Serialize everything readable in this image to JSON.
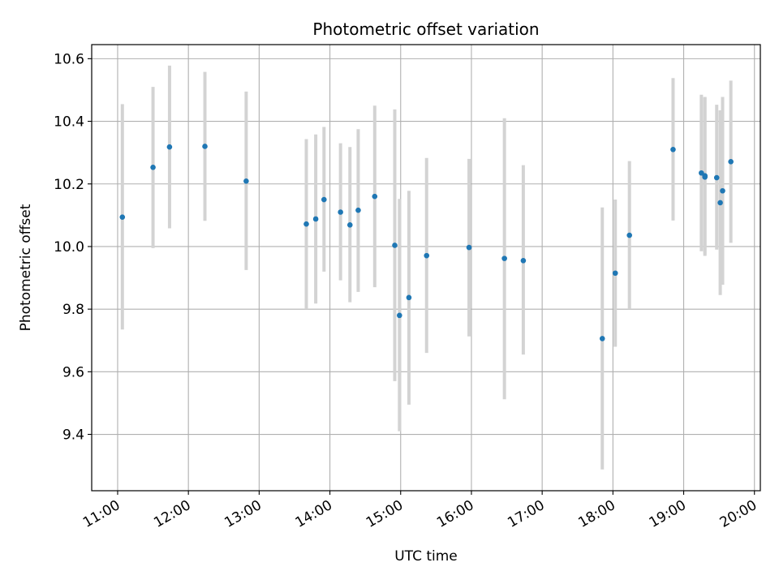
{
  "chart_data": {
    "type": "scatter",
    "title": "Photometric offset variation",
    "xlabel": "UTC time",
    "ylabel": "Photometric offset",
    "grid": true,
    "xlim": [
      "10:38",
      "20:05"
    ],
    "ylim": [
      9.22,
      10.645
    ],
    "x_ticks": [
      "11:00",
      "12:00",
      "13:00",
      "14:00",
      "15:00",
      "16:00",
      "17:00",
      "18:00",
      "19:00",
      "20:00"
    ],
    "y_ticks": [
      9.4,
      9.6,
      9.8,
      10.0,
      10.2,
      10.4,
      10.6
    ],
    "y_tick_labels": [
      "9.4",
      "9.6",
      "9.8",
      "10.0",
      "10.2",
      "10.4",
      "10.6"
    ],
    "series": [
      {
        "marker_color": "#1f77b4",
        "errorbar_color": "#d3d3d3",
        "points": [
          {
            "x": "11:04",
            "y": 10.094,
            "low": 9.735,
            "high": 10.455
          },
          {
            "x": "11:30",
            "y": 10.253,
            "low": 9.995,
            "high": 10.51
          },
          {
            "x": "11:44",
            "y": 10.318,
            "low": 10.058,
            "high": 10.578
          },
          {
            "x": "12:14",
            "y": 10.32,
            "low": 10.082,
            "high": 10.558
          },
          {
            "x": "12:49",
            "y": 10.209,
            "low": 9.925,
            "high": 10.495
          },
          {
            "x": "13:40",
            "y": 10.072,
            "low": 9.8,
            "high": 10.343
          },
          {
            "x": "13:48",
            "y": 10.088,
            "low": 9.818,
            "high": 10.358
          },
          {
            "x": "13:55",
            "y": 10.15,
            "low": 9.92,
            "high": 10.382
          },
          {
            "x": "14:09",
            "y": 10.11,
            "low": 9.892,
            "high": 10.33
          },
          {
            "x": "14:17",
            "y": 10.069,
            "low": 9.822,
            "high": 10.318
          },
          {
            "x": "14:24",
            "y": 10.116,
            "low": 9.855,
            "high": 10.375
          },
          {
            "x": "14:38",
            "y": 10.16,
            "low": 9.87,
            "high": 10.45
          },
          {
            "x": "14:55",
            "y": 10.004,
            "low": 9.57,
            "high": 10.438
          },
          {
            "x": "14:59",
            "y": 9.78,
            "low": 9.41,
            "high": 10.152
          },
          {
            "x": "15:07",
            "y": 9.837,
            "low": 9.495,
            "high": 10.178
          },
          {
            "x": "15:22",
            "y": 9.971,
            "low": 9.66,
            "high": 10.283
          },
          {
            "x": "15:58",
            "y": 9.997,
            "low": 9.713,
            "high": 10.28
          },
          {
            "x": "16:28",
            "y": 9.962,
            "low": 9.512,
            "high": 10.41
          },
          {
            "x": "16:44",
            "y": 9.955,
            "low": 9.655,
            "high": 10.26
          },
          {
            "x": "17:51",
            "y": 9.706,
            "low": 9.288,
            "high": 10.125
          },
          {
            "x": "18:02",
            "y": 9.915,
            "low": 9.68,
            "high": 10.15
          },
          {
            "x": "18:14",
            "y": 10.036,
            "low": 9.8,
            "high": 10.273
          },
          {
            "x": "18:51",
            "y": 10.31,
            "low": 10.083,
            "high": 10.538
          },
          {
            "x": "19:15",
            "y": 10.235,
            "low": 9.985,
            "high": 10.485
          },
          {
            "x": "19:18",
            "y": 10.222,
            "low": 9.97,
            "high": 10.475
          },
          {
            "x": "19:18",
            "y": 10.226,
            "low": 9.975,
            "high": 10.478
          },
          {
            "x": "19:28",
            "y": 10.22,
            "low": 9.99,
            "high": 10.453
          },
          {
            "x": "19:31",
            "y": 10.14,
            "low": 9.845,
            "high": 10.435
          },
          {
            "x": "19:33",
            "y": 10.178,
            "low": 9.878,
            "high": 10.478
          },
          {
            "x": "19:40",
            "y": 10.271,
            "low": 10.012,
            "high": 10.53
          }
        ]
      }
    ]
  }
}
